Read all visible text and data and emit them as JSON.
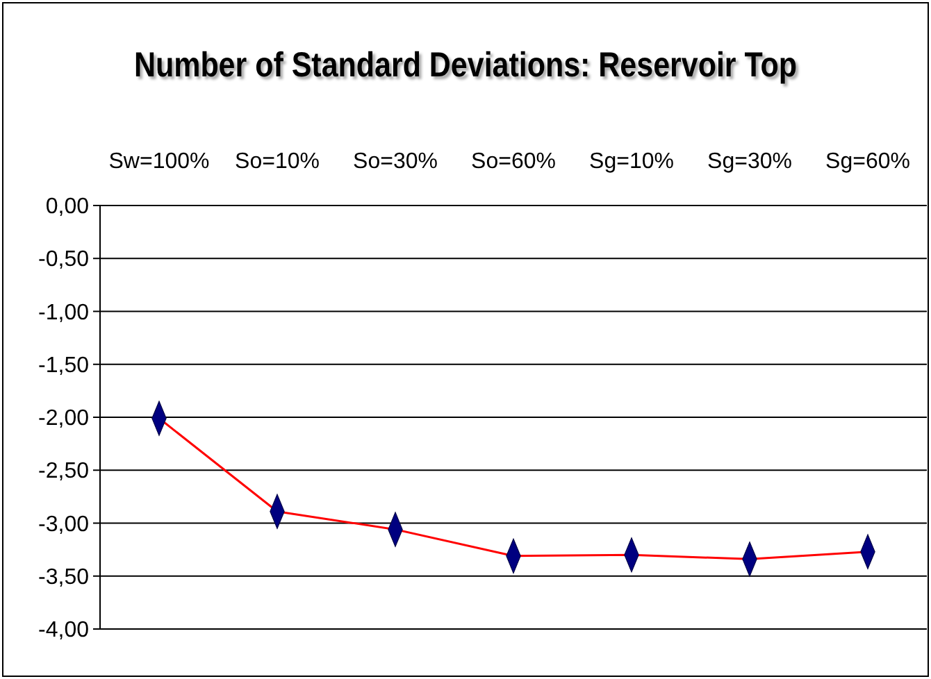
{
  "chart_data": {
    "type": "line",
    "title": "Number of Standard Deviations: Reservoir Top",
    "categories": [
      "Sw=100%",
      "So=10%",
      "So=30%",
      "So=60%",
      "Sg=10%",
      "Sg=30%",
      "Sg=60%"
    ],
    "series": [
      {
        "color": "#ff0000",
        "values": [
          -2.01,
          -2.89,
          -3.06,
          -3.31,
          -3.3,
          -3.34,
          -3.27
        ]
      }
    ],
    "ylim": [
      -4,
      0
    ],
    "yticks": [
      {
        "value": 0,
        "label": "0,00"
      },
      {
        "value": -0.5,
        "label": "-0,50"
      },
      {
        "value": -1,
        "label": "-1,00"
      },
      {
        "value": -1.5,
        "label": "-1,50"
      },
      {
        "value": -2,
        "label": "-2,00"
      },
      {
        "value": -2.5,
        "label": "-2,50"
      },
      {
        "value": -3,
        "label": "-3,00"
      },
      {
        "value": -3.5,
        "label": "-3,50"
      },
      {
        "value": -4,
        "label": "-4,00"
      }
    ],
    "grid": "y",
    "marker": "diamond",
    "line_style": "solid"
  }
}
